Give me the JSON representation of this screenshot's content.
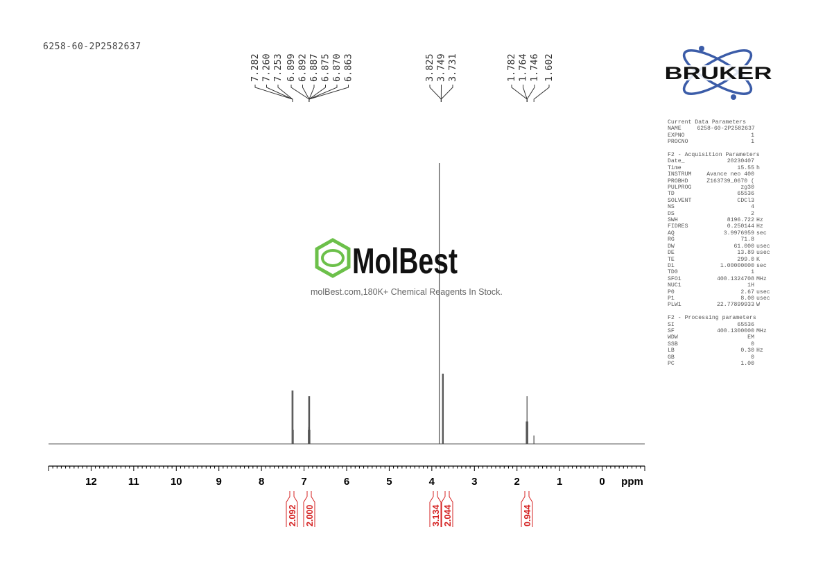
{
  "sample_name": "6258-60-2P2582637",
  "watermark": {
    "brand": "MolBest",
    "tagline": "molBest.com,180K+ Chemical Reagents In Stock."
  },
  "logo": {
    "brand": "BRUKER"
  },
  "colors": {
    "spectrum": "#555555",
    "integral": "#d42020",
    "axis": "#000000",
    "logo_blue": "#3b5ca8",
    "watermark_green": "#6cc04a"
  },
  "parameters": {
    "sections": [
      {
        "title": "Current Data Parameters",
        "rows": [
          [
            "NAME",
            "6258-60-2P2582637",
            ""
          ],
          [
            "EXPNO",
            "1",
            ""
          ],
          [
            "PROCNO",
            "1",
            ""
          ]
        ]
      },
      {
        "title": "F2 - Acquisition Parameters",
        "rows": [
          [
            "Date_",
            "20230407",
            ""
          ],
          [
            "Time",
            "15.55",
            "h"
          ],
          [
            "INSTRUM",
            "Avance neo 400",
            ""
          ],
          [
            "PROBHD",
            "Z163739_0670 (",
            ""
          ],
          [
            "PULPROG",
            "zg30",
            ""
          ],
          [
            "TD",
            "65536",
            ""
          ],
          [
            "SOLVENT",
            "CDCl3",
            ""
          ],
          [
            "NS",
            "4",
            ""
          ],
          [
            "DS",
            "2",
            ""
          ],
          [
            "SWH",
            "8196.722",
            "Hz"
          ],
          [
            "FIDRES",
            "0.250144",
            "Hz"
          ],
          [
            "AQ",
            "3.9976959",
            "sec"
          ],
          [
            "RG",
            "71.8",
            ""
          ],
          [
            "DW",
            "61.000",
            "usec"
          ],
          [
            "DE",
            "13.89",
            "usec"
          ],
          [
            "TE",
            "299.0",
            "K"
          ],
          [
            "D1",
            "1.00000000",
            "sec"
          ],
          [
            "TD0",
            "1",
            ""
          ],
          [
            "SFO1",
            "400.1324708",
            "MHz"
          ],
          [
            "NUC1",
            "1H",
            ""
          ],
          [
            "P0",
            "2.67",
            "usec"
          ],
          [
            "P1",
            "8.00",
            "usec"
          ],
          [
            "PLW1",
            "22.77899933",
            "W"
          ]
        ]
      },
      {
        "title": "F2 - Processing parameters",
        "rows": [
          [
            "SI",
            "65536",
            ""
          ],
          [
            "SF",
            "400.1300000",
            "MHz"
          ],
          [
            "WDW",
            "EM",
            ""
          ],
          [
            "SSB",
            "0",
            ""
          ],
          [
            "LB",
            "0.30",
            "Hz"
          ],
          [
            "GB",
            "0",
            ""
          ],
          [
            "PC",
            "1.00",
            ""
          ]
        ]
      }
    ]
  },
  "chart_data": {
    "type": "line",
    "title": "",
    "xlabel": "ppm",
    "xlim": [
      13,
      -1
    ],
    "x_ticks": [
      12,
      11,
      10,
      9,
      8,
      7,
      6,
      5,
      4,
      3,
      2,
      1,
      0
    ],
    "grid": false,
    "peak_label_groups": [
      {
        "labels": [
          "7.282",
          "7.260",
          "7.253"
        ],
        "anchor": 7.27
      },
      {
        "labels": [
          "6.899",
          "6.892",
          "6.887",
          "6.875",
          "6.870",
          "6.863"
        ],
        "anchor": 6.88
      },
      {
        "labels": [
          "3.825",
          "3.749",
          "3.731"
        ],
        "anchor": 3.78
      },
      {
        "labels": [
          "1.782",
          "1.764",
          "1.746"
        ],
        "anchor": 1.764
      },
      {
        "labels": [
          "1.602"
        ],
        "anchor": 1.602
      }
    ],
    "peaks": [
      {
        "ppm": 7.282,
        "rel_intensity": 0.19
      },
      {
        "ppm": 7.26,
        "rel_intensity": 0.19
      },
      {
        "ppm": 7.253,
        "rel_intensity": 0.05
      },
      {
        "ppm": 6.899,
        "rel_intensity": 0.05
      },
      {
        "ppm": 6.892,
        "rel_intensity": 0.17
      },
      {
        "ppm": 6.887,
        "rel_intensity": 0.06
      },
      {
        "ppm": 6.875,
        "rel_intensity": 0.06
      },
      {
        "ppm": 6.87,
        "rel_intensity": 0.17
      },
      {
        "ppm": 6.863,
        "rel_intensity": 0.05
      },
      {
        "ppm": 3.825,
        "rel_intensity": 1.0
      },
      {
        "ppm": 3.749,
        "rel_intensity": 0.25
      },
      {
        "ppm": 3.731,
        "rel_intensity": 0.25
      },
      {
        "ppm": 1.782,
        "rel_intensity": 0.08
      },
      {
        "ppm": 1.764,
        "rel_intensity": 0.17
      },
      {
        "ppm": 1.746,
        "rel_intensity": 0.08
      },
      {
        "ppm": 1.602,
        "rel_intensity": 0.03
      }
    ],
    "integrals": [
      {
        "ppm": 7.27,
        "value": "2.092"
      },
      {
        "ppm": 6.88,
        "value": "2.000"
      },
      {
        "ppm": 3.825,
        "value": "3.134"
      },
      {
        "ppm": 3.74,
        "value": "2.044"
      },
      {
        "ppm": 1.764,
        "value": "0.944"
      }
    ]
  }
}
